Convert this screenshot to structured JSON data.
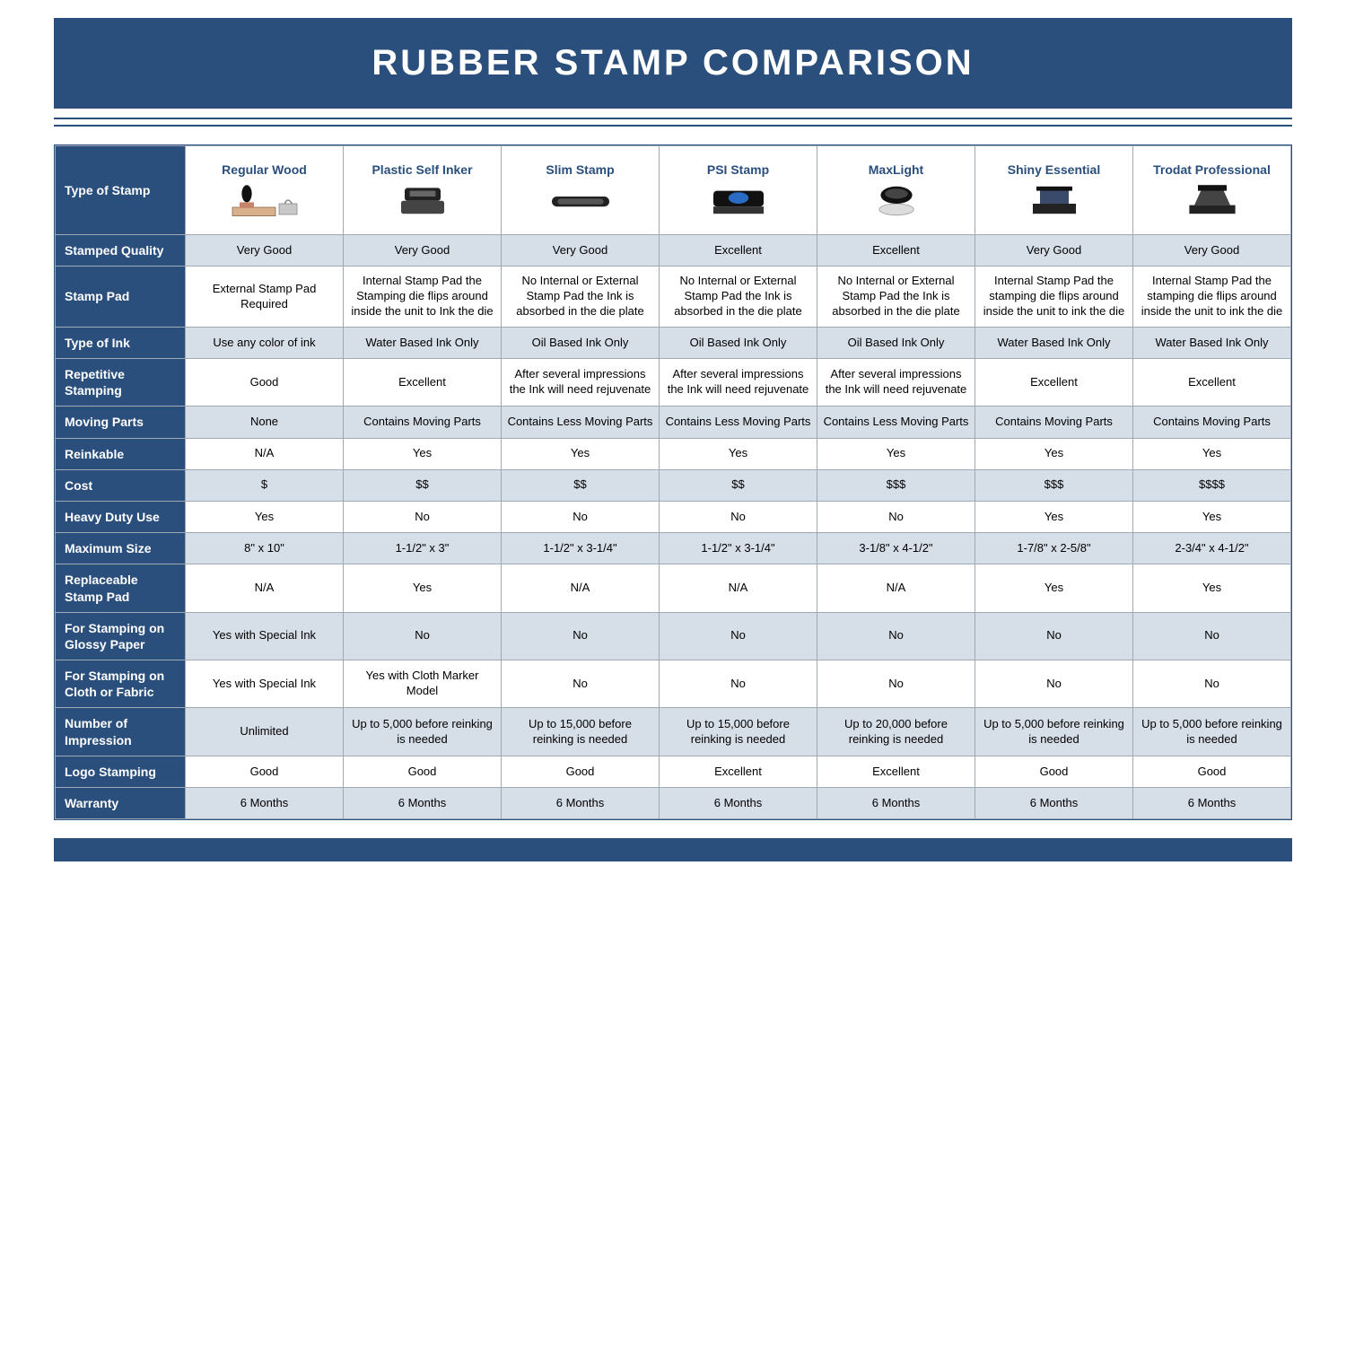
{
  "title": "RUBBER STAMP COMPARISON",
  "colors": {
    "brand": "#2a4f7d",
    "band": "#d6dee8",
    "border": "#9fa8b5"
  },
  "columns": [
    "Regular Wood",
    "Plastic Self Inker",
    "Slim Stamp",
    "PSI Stamp",
    "MaxLight",
    "Shiny Essential",
    "Trodat Professional"
  ],
  "rowLabels": {
    "type": "Type of Stamp",
    "quality": "Stamped Quality",
    "pad": "Stamp Pad",
    "ink": "Type of Ink",
    "rep": "Repetitive Stamping",
    "moving": "Moving Parts",
    "reink": "Reinkable",
    "cost": "Cost",
    "heavy": "Heavy Duty Use",
    "max": "Maximum Size",
    "replace": "Replaceable Stamp Pad",
    "glossy": "For Stamping on Glossy Paper",
    "cloth": "For Stamping on Cloth or Fabric",
    "impr": "Number of Impression",
    "logo": "Logo Stamping",
    "warr": "Warranty"
  },
  "data": {
    "quality": [
      "Very Good",
      "Very Good",
      "Very Good",
      "Excellent",
      "Excellent",
      "Very Good",
      "Very Good"
    ],
    "pad": [
      "External Stamp Pad Required",
      "Internal Stamp Pad the Stamping die flips around inside the unit to Ink the die",
      "No Internal or External Stamp Pad the Ink is absorbed in the die plate",
      "No Internal or External Stamp Pad the Ink is absorbed in the die plate",
      "No Internal or External Stamp Pad the Ink is absorbed in the die plate",
      "Internal Stamp Pad the stamping die flips around inside the unit to ink the die",
      "Internal Stamp Pad the stamping die flips around inside the unit to ink the die"
    ],
    "ink": [
      "Use any color of ink",
      "Water Based Ink Only",
      "Oil Based Ink Only",
      "Oil Based Ink Only",
      "Oil Based Ink Only",
      "Water Based Ink Only",
      "Water Based Ink Only"
    ],
    "rep": [
      "Good",
      "Excellent",
      "After several impressions the Ink will need rejuvenate",
      "After several impressions the Ink will need rejuvenate",
      "After several impressions the Ink will need rejuvenate",
      "Excellent",
      "Excellent"
    ],
    "moving": [
      "None",
      "Contains Moving Parts",
      "Contains Less Moving Parts",
      "Contains Less Moving Parts",
      "Contains Less Moving Parts",
      "Contains Moving Parts",
      "Contains Moving Parts"
    ],
    "reink": [
      "N/A",
      "Yes",
      "Yes",
      "Yes",
      "Yes",
      "Yes",
      "Yes"
    ],
    "cost": [
      "$",
      "$$",
      "$$",
      "$$",
      "$$$",
      "$$$",
      "$$$$"
    ],
    "heavy": [
      "Yes",
      "No",
      "No",
      "No",
      "No",
      "Yes",
      "Yes"
    ],
    "max": [
      "8\" x 10\"",
      "1-1/2\" x 3\"",
      "1-1/2\" x 3-1/4\"",
      "1-1/2\" x 3-1/4\"",
      "3-1/8\" x 4-1/2\"",
      "1-7/8\" x 2-5/8\"",
      "2-3/4\" x 4-1/2\""
    ],
    "replace": [
      "N/A",
      "Yes",
      "N/A",
      "N/A",
      "N/A",
      "Yes",
      "Yes"
    ],
    "glossy": [
      "Yes with Special Ink",
      "No",
      "No",
      "No",
      "No",
      "No",
      "No"
    ],
    "cloth": [
      "Yes with Special Ink",
      "Yes with Cloth Marker Model",
      "No",
      "No",
      "No",
      "No",
      "No"
    ],
    "impr": [
      "Unlimited",
      "Up to 5,000 before reinking is needed",
      "Up to 15,000 before reinking is needed",
      "Up to 15,000 before reinking is needed",
      "Up to 20,000 before reinking is needed",
      "Up to 5,000 before reinking is needed",
      "Up to 5,000 before reinking is needed"
    ],
    "logo": [
      "Good",
      "Good",
      "Good",
      "Excellent",
      "Excellent",
      "Good",
      "Good"
    ],
    "warr": [
      "6 Months",
      "6 Months",
      "6 Months",
      "6 Months",
      "6 Months",
      "6 Months",
      "6 Months"
    ]
  }
}
